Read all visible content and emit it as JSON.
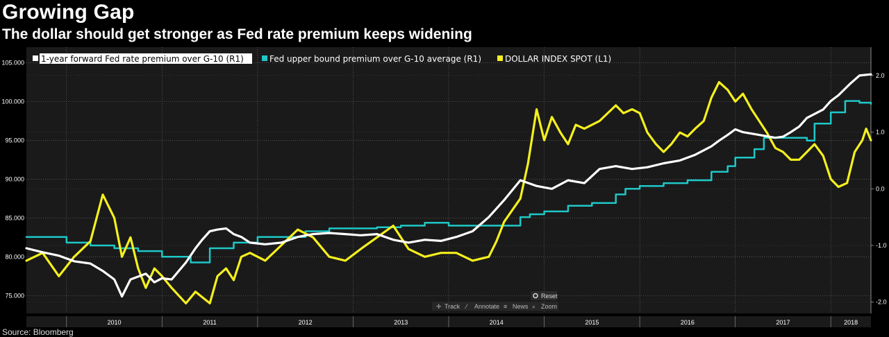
{
  "header": {
    "title": "Growing Gap",
    "subtitle": "The dollar should get stronger as Fed rate premium keeps widening"
  },
  "footer": {
    "source": "Source: Bloomberg"
  },
  "controls": {
    "reset": "Reset",
    "track": "Track",
    "annotate": "Annotate",
    "news": "News",
    "zoom": "Zoom"
  },
  "colors": {
    "background": "#000000",
    "plot_bg": "#1a1a1a",
    "grid": "#6a6a6a",
    "white_series": "#ffffff",
    "cyan_series": "#1ec8c8",
    "yellow_series": "#f5f01e"
  },
  "chart_data": {
    "type": "line",
    "title": "Growing Gap",
    "subtitle": "The dollar should get stronger as Fed rate premium keeps widening",
    "x_ticks": [
      "2010",
      "2011",
      "2012",
      "2013",
      "2014",
      "2015",
      "2016",
      "2017",
      "2018"
    ],
    "x_range": [
      2009.58,
      2018.42
    ],
    "y_left": {
      "axis": "L1",
      "range": [
        72.7,
        107.0
      ],
      "ticks": [
        "75.000",
        "80.000",
        "85.000",
        "90.000",
        "95.000",
        "100.000",
        "105.000"
      ]
    },
    "y_right": {
      "axis": "R1",
      "range": [
        -2.2,
        2.5
      ],
      "ticks": [
        "-2.0",
        "-1.0",
        "0.0",
        "1.0",
        "2.0"
      ]
    },
    "grid": true,
    "legend_position": "top-left",
    "series": [
      {
        "name": "1-year forward Fed rate premium over G-10 (R1)",
        "axis": "R1",
        "color": "#ffffff",
        "points": [
          [
            2009.58,
            -1.05
          ],
          [
            2009.75,
            -1.12
          ],
          [
            2009.92,
            -1.18
          ],
          [
            2010.08,
            -1.28
          ],
          [
            2010.25,
            -1.32
          ],
          [
            2010.38,
            -1.45
          ],
          [
            2010.5,
            -1.6
          ],
          [
            2010.58,
            -1.9
          ],
          [
            2010.67,
            -1.6
          ],
          [
            2010.75,
            -1.55
          ],
          [
            2010.83,
            -1.5
          ],
          [
            2010.92,
            -1.65
          ],
          [
            2011.0,
            -1.58
          ],
          [
            2011.1,
            -1.6
          ],
          [
            2011.25,
            -1.3
          ],
          [
            2011.35,
            -1.05
          ],
          [
            2011.42,
            -0.9
          ],
          [
            2011.5,
            -0.75
          ],
          [
            2011.58,
            -0.72
          ],
          [
            2011.67,
            -0.7
          ],
          [
            2011.75,
            -0.8
          ],
          [
            2011.83,
            -0.85
          ],
          [
            2011.92,
            -0.95
          ],
          [
            2012.08,
            -0.98
          ],
          [
            2012.25,
            -0.95
          ],
          [
            2012.42,
            -0.85
          ],
          [
            2012.58,
            -0.8
          ],
          [
            2012.75,
            -0.78
          ],
          [
            2012.92,
            -0.8
          ],
          [
            2013.08,
            -0.82
          ],
          [
            2013.25,
            -0.8
          ],
          [
            2013.42,
            -0.9
          ],
          [
            2013.58,
            -0.95
          ],
          [
            2013.75,
            -0.9
          ],
          [
            2013.92,
            -0.92
          ],
          [
            2014.08,
            -0.85
          ],
          [
            2014.25,
            -0.75
          ],
          [
            2014.42,
            -0.5
          ],
          [
            2014.58,
            -0.2
          ],
          [
            2014.75,
            0.15
          ],
          [
            2014.92,
            0.05
          ],
          [
            2015.08,
            0.0
          ],
          [
            2015.25,
            0.15
          ],
          [
            2015.42,
            0.1
          ],
          [
            2015.58,
            0.35
          ],
          [
            2015.75,
            0.4
          ],
          [
            2015.92,
            0.35
          ],
          [
            2016.08,
            0.38
          ],
          [
            2016.25,
            0.45
          ],
          [
            2016.42,
            0.5
          ],
          [
            2016.58,
            0.6
          ],
          [
            2016.75,
            0.75
          ],
          [
            2016.83,
            0.85
          ],
          [
            2016.92,
            0.95
          ],
          [
            2017.0,
            1.05
          ],
          [
            2017.08,
            1.0
          ],
          [
            2017.25,
            0.95
          ],
          [
            2017.42,
            0.9
          ],
          [
            2017.5,
            0.92
          ],
          [
            2017.58,
            1.0
          ],
          [
            2017.67,
            1.1
          ],
          [
            2017.75,
            1.25
          ],
          [
            2017.92,
            1.4
          ],
          [
            2018.0,
            1.55
          ],
          [
            2018.08,
            1.65
          ],
          [
            2018.2,
            1.85
          ],
          [
            2018.3,
            2.0
          ],
          [
            2018.42,
            2.02
          ]
        ]
      },
      {
        "name": "Fed upper bound premium over G-10 average (R1)",
        "axis": "R1",
        "color": "#1ec8c8",
        "points": [
          [
            2009.58,
            -0.85
          ],
          [
            2010.0,
            -0.95
          ],
          [
            2010.25,
            -1.0
          ],
          [
            2010.5,
            -1.05
          ],
          [
            2010.75,
            -1.1
          ],
          [
            2011.0,
            -1.2
          ],
          [
            2011.3,
            -1.3
          ],
          [
            2011.5,
            -1.05
          ],
          [
            2011.75,
            -0.95
          ],
          [
            2012.0,
            -0.85
          ],
          [
            2012.25,
            -0.85
          ],
          [
            2012.5,
            -0.75
          ],
          [
            2012.75,
            -0.7
          ],
          [
            2013.0,
            -0.7
          ],
          [
            2013.25,
            -0.68
          ],
          [
            2013.5,
            -0.65
          ],
          [
            2013.75,
            -0.6
          ],
          [
            2014.0,
            -0.65
          ],
          [
            2014.25,
            -0.65
          ],
          [
            2014.5,
            -0.65
          ],
          [
            2014.75,
            -0.5
          ],
          [
            2014.85,
            -0.45
          ],
          [
            2015.0,
            -0.4
          ],
          [
            2015.25,
            -0.3
          ],
          [
            2015.5,
            -0.25
          ],
          [
            2015.75,
            -0.1
          ],
          [
            2015.85,
            0.0
          ],
          [
            2016.0,
            0.05
          ],
          [
            2016.25,
            0.1
          ],
          [
            2016.5,
            0.15
          ],
          [
            2016.75,
            0.3
          ],
          [
            2016.92,
            0.4
          ],
          [
            2017.0,
            0.55
          ],
          [
            2017.2,
            0.7
          ],
          [
            2017.3,
            0.9
          ],
          [
            2017.5,
            0.9
          ],
          [
            2017.75,
            0.85
          ],
          [
            2017.83,
            1.15
          ],
          [
            2018.0,
            1.35
          ],
          [
            2018.15,
            1.55
          ],
          [
            2018.3,
            1.52
          ],
          [
            2018.42,
            1.5
          ]
        ]
      },
      {
        "name": "DOLLAR INDEX SPOT (L1)",
        "axis": "L1",
        "color": "#f5f01e",
        "points": [
          [
            2009.58,
            79.5
          ],
          [
            2009.75,
            80.5
          ],
          [
            2009.92,
            77.5
          ],
          [
            2010.08,
            80.0
          ],
          [
            2010.25,
            82.0
          ],
          [
            2010.38,
            88.0
          ],
          [
            2010.5,
            85.0
          ],
          [
            2010.58,
            80.0
          ],
          [
            2010.67,
            82.5
          ],
          [
            2010.75,
            78.5
          ],
          [
            2010.83,
            76.0
          ],
          [
            2010.92,
            78.5
          ],
          [
            2011.0,
            77.5
          ],
          [
            2011.1,
            76.0
          ],
          [
            2011.25,
            74.0
          ],
          [
            2011.35,
            75.5
          ],
          [
            2011.5,
            74.0
          ],
          [
            2011.58,
            77.5
          ],
          [
            2011.67,
            78.5
          ],
          [
            2011.75,
            77.0
          ],
          [
            2011.83,
            80.0
          ],
          [
            2011.92,
            80.5
          ],
          [
            2012.08,
            79.5
          ],
          [
            2012.25,
            81.5
          ],
          [
            2012.42,
            83.5
          ],
          [
            2012.58,
            82.5
          ],
          [
            2012.75,
            80.0
          ],
          [
            2012.92,
            79.5
          ],
          [
            2013.08,
            81.0
          ],
          [
            2013.25,
            82.5
          ],
          [
            2013.42,
            84.0
          ],
          [
            2013.58,
            81.0
          ],
          [
            2013.75,
            80.0
          ],
          [
            2013.92,
            80.5
          ],
          [
            2014.08,
            80.5
          ],
          [
            2014.25,
            79.5
          ],
          [
            2014.42,
            80.0
          ],
          [
            2014.5,
            82.0
          ],
          [
            2014.58,
            84.5
          ],
          [
            2014.75,
            87.5
          ],
          [
            2014.83,
            92.0
          ],
          [
            2014.92,
            99.0
          ],
          [
            2015.0,
            95.0
          ],
          [
            2015.08,
            98.0
          ],
          [
            2015.17,
            96.0
          ],
          [
            2015.25,
            94.5
          ],
          [
            2015.33,
            97.0
          ],
          [
            2015.42,
            96.5
          ],
          [
            2015.58,
            97.5
          ],
          [
            2015.75,
            99.5
          ],
          [
            2015.83,
            98.5
          ],
          [
            2015.92,
            99.0
          ],
          [
            2016.0,
            98.5
          ],
          [
            2016.08,
            96.0
          ],
          [
            2016.17,
            94.5
          ],
          [
            2016.25,
            93.5
          ],
          [
            2016.33,
            94.5
          ],
          [
            2016.42,
            96.0
          ],
          [
            2016.5,
            95.5
          ],
          [
            2016.58,
            96.5
          ],
          [
            2016.67,
            97.5
          ],
          [
            2016.75,
            100.5
          ],
          [
            2016.83,
            102.5
          ],
          [
            2016.92,
            101.5
          ],
          [
            2017.0,
            100.0
          ],
          [
            2017.08,
            101.0
          ],
          [
            2017.17,
            99.0
          ],
          [
            2017.25,
            97.5
          ],
          [
            2017.33,
            96.0
          ],
          [
            2017.42,
            94.0
          ],
          [
            2017.5,
            93.5
          ],
          [
            2017.58,
            92.5
          ],
          [
            2017.67,
            92.5
          ],
          [
            2017.75,
            93.5
          ],
          [
            2017.83,
            94.5
          ],
          [
            2017.92,
            93.0
          ],
          [
            2018.0,
            90.0
          ],
          [
            2018.08,
            89.0
          ],
          [
            2018.17,
            89.5
          ],
          [
            2018.25,
            93.5
          ],
          [
            2018.33,
            95.0
          ],
          [
            2018.37,
            96.5
          ],
          [
            2018.42,
            95.0
          ]
        ]
      }
    ]
  }
}
